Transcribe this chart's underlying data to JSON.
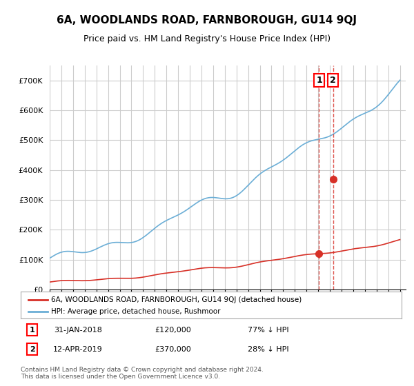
{
  "title": "6A, WOODLANDS ROAD, FARNBOROUGH, GU14 9QJ",
  "subtitle": "Price paid vs. HM Land Registry's House Price Index (HPI)",
  "hpi_color": "#6baed6",
  "price_color": "#d73027",
  "dashed_color": "#d73027",
  "background_color": "#ffffff",
  "grid_color": "#cccccc",
  "legend_entries": [
    "6A, WOODLANDS ROAD, FARNBOROUGH, GU14 9QJ (detached house)",
    "HPI: Average price, detached house, Rushmoor"
  ],
  "transaction_1": {
    "label": "1",
    "date": "31-JAN-2018",
    "price": 120000,
    "pct": "77% ↓ HPI"
  },
  "transaction_2": {
    "label": "2",
    "date": "12-APR-2019",
    "price": 370000,
    "pct": "28% ↓ HPI"
  },
  "footnote": "Contains HM Land Registry data © Crown copyright and database right 2024.\nThis data is licensed under the Open Government Licence v3.0.",
  "ylim": [
    0,
    750000
  ],
  "yticks": [
    0,
    100000,
    200000,
    300000,
    400000,
    500000,
    600000,
    700000
  ],
  "ytick_labels": [
    "£0",
    "£100K",
    "£200K",
    "£300K",
    "£400K",
    "£500K",
    "£600K",
    "£700K"
  ]
}
